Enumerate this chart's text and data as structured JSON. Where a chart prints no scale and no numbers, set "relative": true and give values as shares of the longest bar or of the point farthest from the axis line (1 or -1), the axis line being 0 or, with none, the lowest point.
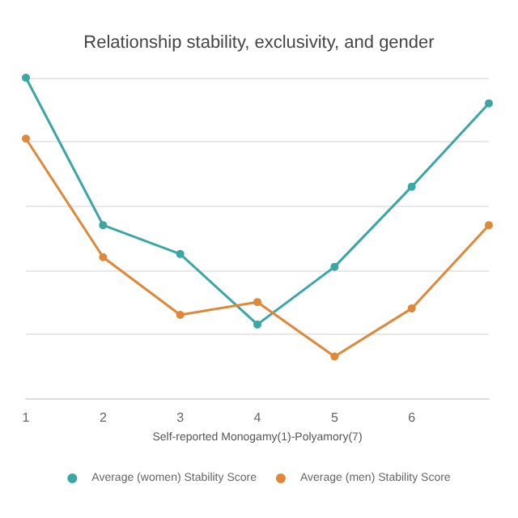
{
  "chart_data": {
    "type": "line",
    "title": "Relationship stability, exclusivity, and gender",
    "xlabel": "Self-reported Monogamy(1)-Polyamory(7)",
    "categories": [
      "1",
      "2",
      "3",
      "4",
      "5",
      "6",
      null
    ],
    "relative": true,
    "grid": "y",
    "legend": "bottom",
    "marker": "circle",
    "line_style": "solid",
    "series": [
      {
        "name": "Average (women) Stability Score",
        "color": "#3aa6a6",
        "values": [
          1,
          0.54,
          0.45,
          0.23,
          0.41,
          0.66,
          0.92
        ]
      },
      {
        "name": "Average (men) Stability Score",
        "color": "#e0883a",
        "values": [
          0.81,
          0.44,
          0.26,
          0.3,
          0.13,
          0.28,
          0.54
        ]
      }
    ]
  }
}
